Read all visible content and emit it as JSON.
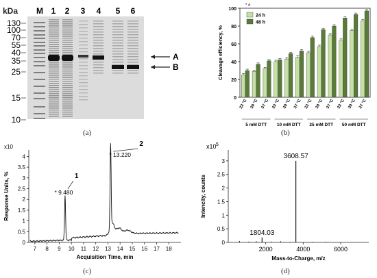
{
  "panel_a": {
    "caption": "(a)",
    "header": "kDa",
    "lanes": [
      "M",
      "1",
      "2",
      "3",
      "4",
      "5",
      "6"
    ],
    "mw_markers": [
      "130",
      "100",
      "70",
      "55",
      "40",
      "35",
      "25",
      "15",
      "10"
    ],
    "arrow_a": "A",
    "arrow_b": "B"
  },
  "panel_b": {
    "caption": "(b)",
    "chart_data": {
      "type": "bar",
      "ylabel": "Cleavage efficiency, %",
      "ylim": [
        0,
        100
      ],
      "yticks": [
        "0",
        "20",
        "40",
        "60",
        "80",
        "100"
      ],
      "categories": [
        "23 °C",
        "30 °C",
        "37 °C",
        "23 °C",
        "30 °C",
        "37 °C",
        "23 °C",
        "30 °C",
        "37 °C",
        "23 °C",
        "30 °C",
        "37 °C"
      ],
      "groups": [
        "5 mM DTT",
        "10 mM DTT",
        "25 mM DTT",
        "50 mM DTT"
      ],
      "series": [
        {
          "name": "24 h",
          "color": "#c5e0a5",
          "values": [
            25,
            29,
            32,
            40,
            43,
            45,
            50,
            57,
            70,
            64,
            75,
            86
          ]
        },
        {
          "name": "48 h",
          "color": "#5a7a3a",
          "values": [
            30,
            37,
            41,
            42,
            49,
            52,
            67,
            76,
            80,
            89,
            93,
            97
          ]
        }
      ],
      "legend_position": "top-left",
      "annotation": "* #"
    }
  },
  "panel_c": {
    "caption": "(c)",
    "chart_data": {
      "type": "line",
      "xlabel": "Acquisition Time, min",
      "ylabel": "Response Units, %",
      "ymult": "x10",
      "xlim": [
        6.5,
        19
      ],
      "ylim": [
        0,
        4.3
      ],
      "xticks": [
        "7",
        "8",
        "9",
        "10",
        "11",
        "12",
        "13",
        "14",
        "15",
        "16",
        "17",
        "18"
      ],
      "yticks": [
        "0",
        "0.5",
        "1",
        "1.5",
        "2",
        "2.5",
        "3",
        "3.5",
        "4"
      ],
      "peaks": [
        {
          "label": "* 9.480",
          "number": "1",
          "x": 9.48,
          "y": 2.1
        },
        {
          "label": "* 13.220",
          "number": "2",
          "x": 13.22,
          "y": 3.85
        }
      ]
    }
  },
  "panel_d": {
    "caption": "(d)",
    "chart_data": {
      "type": "bar",
      "xlabel": "Mass-to-Charge, m/z",
      "ylabel": "Intencity, counts",
      "ymult": "x10",
      "ymult_exp": "5",
      "xlim": [
        0,
        7500
      ],
      "ylim": [
        0,
        3.4
      ],
      "xticks": [
        "2000",
        "4000",
        "6000"
      ],
      "yticks": [
        "0",
        "0.5",
        "1",
        "1.5",
        "2",
        "2.5",
        "3"
      ],
      "peaks": [
        {
          "label": "1804.03",
          "x": 1804.03,
          "y": 0.18
        },
        {
          "label": "3608.57",
          "x": 3608.57,
          "y": 3.0
        }
      ]
    }
  }
}
